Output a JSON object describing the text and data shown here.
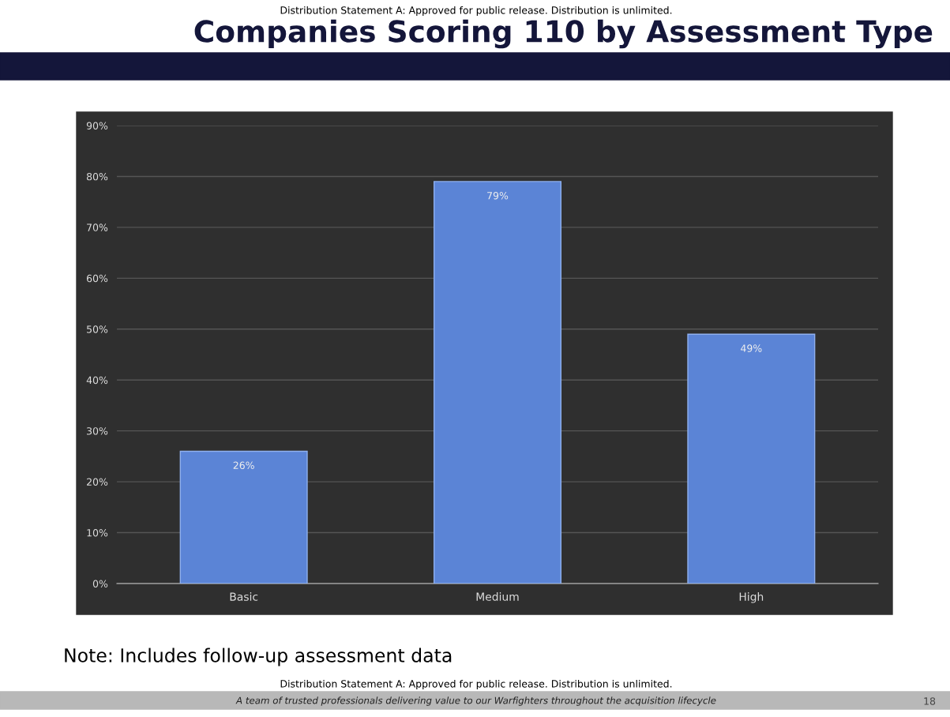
{
  "chart_data": {
    "type": "bar",
    "title": "Companies Scoring 110 by Assessment Type",
    "categories": [
      "Basic",
      "Medium",
      "High"
    ],
    "values": [
      26,
      79,
      49
    ],
    "value_labels": [
      "26%",
      "79%",
      "49%"
    ],
    "color": "#5b84d6",
    "ylim": [
      0,
      90
    ],
    "yticks": [
      {
        "value": 0,
        "label": "0%"
      },
      {
        "value": 10,
        "label": "10%"
      },
      {
        "value": 20,
        "label": "20%"
      },
      {
        "value": 30,
        "label": "30%"
      },
      {
        "value": 40,
        "label": "40%"
      },
      {
        "value": 50,
        "label": "50%"
      },
      {
        "value": 60,
        "label": "60%"
      },
      {
        "value": 70,
        "label": "70%"
      },
      {
        "value": 80,
        "label": "80%"
      },
      {
        "value": 90,
        "label": "90%"
      }
    ],
    "grid": "y",
    "annotations": [
      "Distribution Statement A: Approved for public release. Distribution is unlimited.",
      "Note: Includes follow-up assessment data",
      "Distribution Statement A: Approved for public release. Distribution is unlimited.",
      "A team of trusted professionals delivering value to our Warfighters throughout the acquisition lifecycle",
      "18"
    ]
  }
}
